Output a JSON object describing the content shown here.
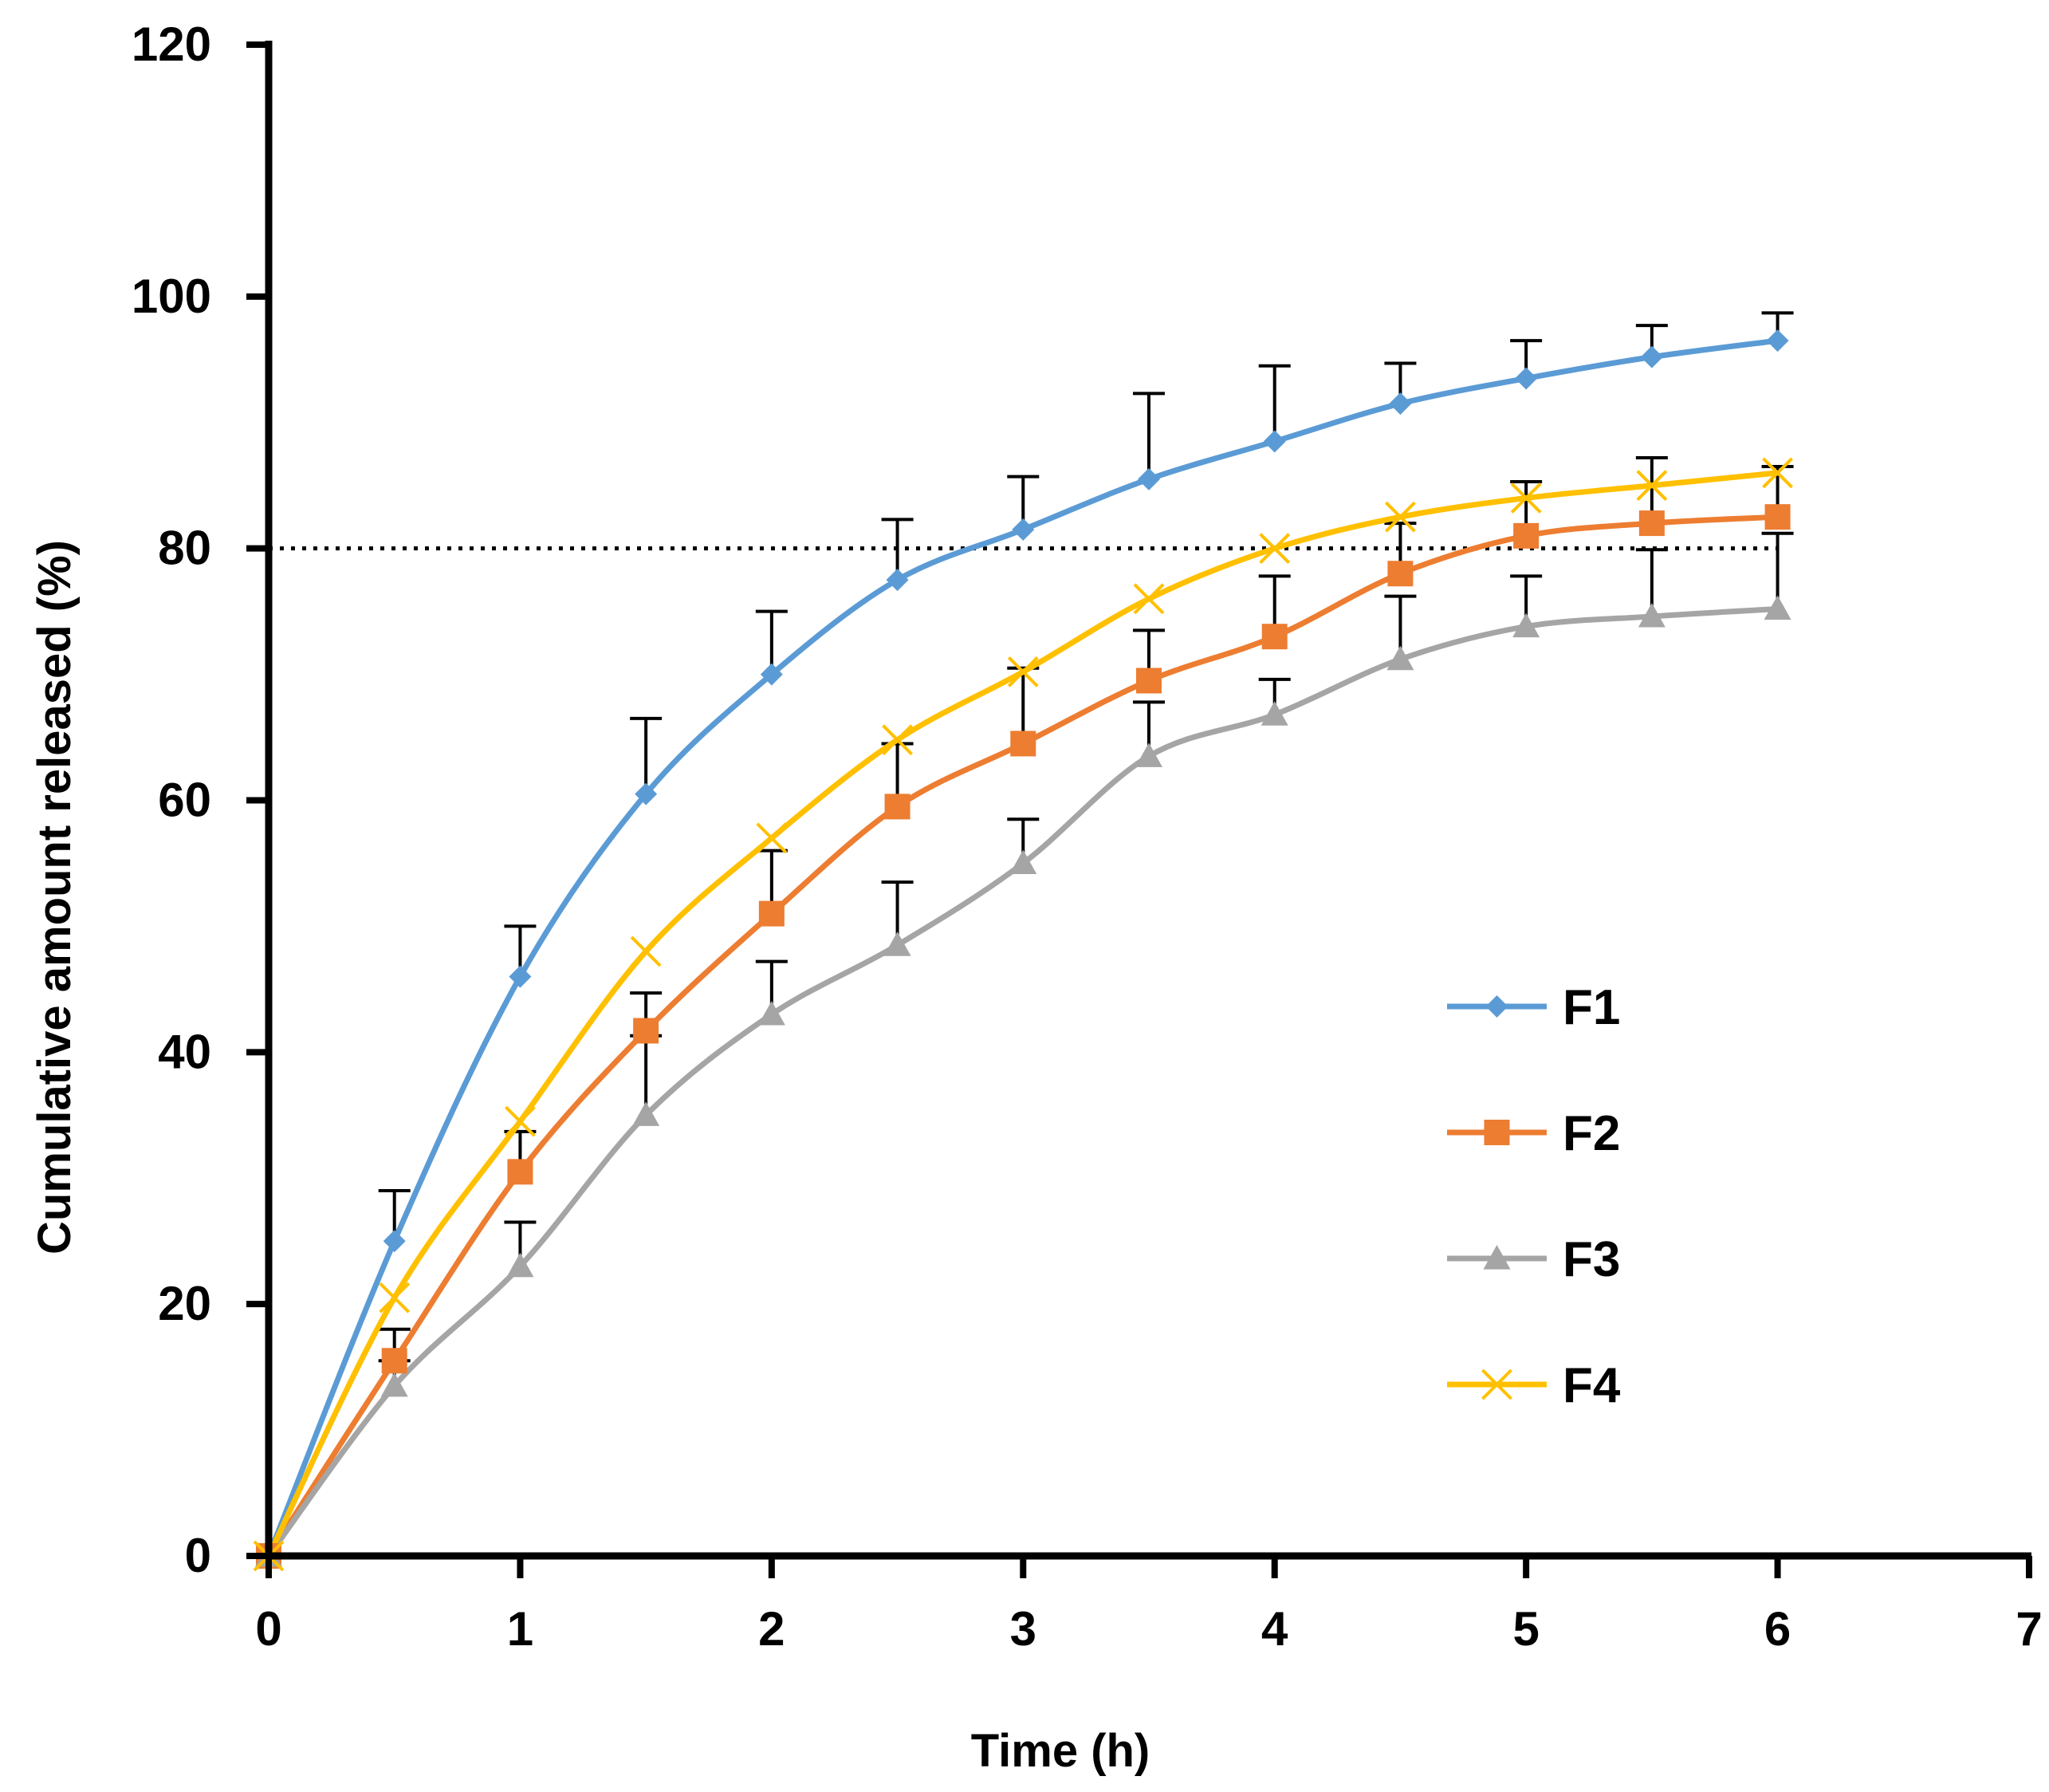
{
  "chart_data": {
    "type": "line",
    "title": "",
    "xlabel": "Time (h)",
    "ylabel": "Cumulative amount released (%)",
    "xlim": [
      0,
      7
    ],
    "ylim": [
      0,
      120
    ],
    "x_ticks": [
      0,
      1,
      2,
      3,
      4,
      5,
      6,
      7
    ],
    "y_ticks": [
      0,
      20,
      40,
      60,
      80,
      100,
      120
    ],
    "x_tick_labels": [
      "0",
      "1",
      "2",
      "3",
      "4",
      "5",
      "6",
      "7"
    ],
    "y_tick_labels": [
      "0",
      "20",
      "40",
      "60",
      "80",
      "100",
      "120"
    ],
    "grid": false,
    "legend_position": "right-middle",
    "reference_line": {
      "y": 80,
      "x_range": [
        0,
        6
      ],
      "style": "dotted"
    },
    "x": [
      0,
      0.5,
      1,
      1.5,
      2,
      2.5,
      3,
      3.5,
      4,
      4.5,
      5,
      5.5,
      6
    ],
    "series": [
      {
        "name": "F1",
        "color": "#5B9BD5",
        "marker": "diamond",
        "values": [
          0,
          25,
          46,
          60.5,
          70,
          77.5,
          81.5,
          85.5,
          88.5,
          91.5,
          93.5,
          95.2,
          96.5
        ],
        "errors": [
          0,
          4,
          4,
          6,
          5,
          4.8,
          4.2,
          6.8,
          6,
          3.2,
          3,
          2.5,
          2.2
        ]
      },
      {
        "name": "F2",
        "color": "#ED7D31",
        "marker": "square",
        "values": [
          0,
          15.5,
          30.5,
          41.7,
          51,
          59.5,
          64.5,
          69.5,
          73,
          78,
          81,
          82,
          82.5
        ],
        "errors": [
          0,
          2.5,
          3.2,
          3,
          5,
          5,
          6,
          4,
          4.8,
          4,
          4.3,
          5.2,
          4
        ]
      },
      {
        "name": "F3",
        "color": "#A5A5A5",
        "marker": "triangle",
        "values": [
          0,
          13.5,
          23,
          35,
          43,
          48.5,
          55,
          63.5,
          66.8,
          71.2,
          73.8,
          74.6,
          75.2
        ],
        "errors": [
          0,
          2,
          3.5,
          6.3,
          4.2,
          5,
          3.5,
          4.3,
          2.8,
          5,
          4,
          5.3,
          6
        ]
      },
      {
        "name": "F4",
        "color": "#FFC000",
        "marker": "x",
        "values": [
          0,
          20.5,
          34.5,
          48,
          57,
          64.8,
          70.2,
          76,
          80,
          82.5,
          84,
          85,
          86
        ],
        "errors": [
          0,
          0,
          0,
          0,
          0,
          0,
          0,
          0,
          0,
          0,
          0,
          0,
          0
        ]
      }
    ]
  }
}
